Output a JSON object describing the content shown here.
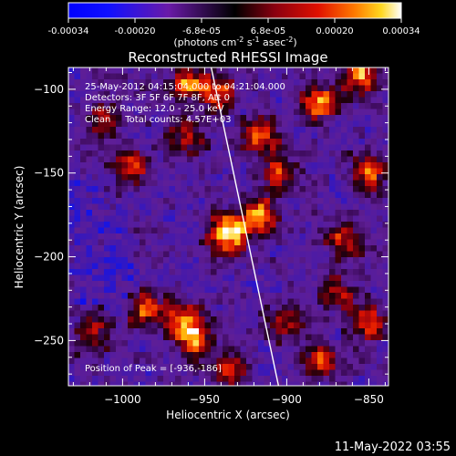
{
  "chart_data": {
    "type": "heatmap",
    "title": "Reconstructed RHESSI Image",
    "colorbar": {
      "ticks": [
        "-0.00034",
        "-0.00020",
        "-6.8e-05",
        "6.8e-05",
        "0.00020",
        "0.00034"
      ],
      "label_main": "(photons cm",
      "label_exp1": "-2",
      "label_mid1": " s",
      "label_exp2": "-1",
      "label_mid2": " asec",
      "label_exp3": "-2",
      "label_end": ")",
      "range": [
        -0.00034,
        0.00034
      ]
    },
    "xlabel": "Heliocentric X (arcsec)",
    "ylabel": "Heliocentric Y (arcsec)",
    "xlim": [
      -1033,
      -838
    ],
    "ylim": [
      -277,
      -87
    ],
    "xticks": [
      {
        "value": -1000,
        "label": "−1000"
      },
      {
        "value": -950,
        "label": "−950"
      },
      {
        "value": -900,
        "label": "−900"
      },
      {
        "value": -850,
        "label": "−850"
      }
    ],
    "yticks": [
      {
        "value": -100,
        "label": "−100"
      },
      {
        "value": -150,
        "label": "−150"
      },
      {
        "value": -200,
        "label": "−200"
      },
      {
        "value": -250,
        "label": "−250"
      }
    ],
    "annotations": [
      "25-May-2012 04:15:04.000 to 04:21:04.000",
      "Detectors: 3F 5F 6F 7F 8F, Att 0",
      "Energy Range: 12.0 - 25.0 keV",
      "Clean     Total counts: 4.57E+03"
    ],
    "peak_label": "Position of Peak = [-936,-186]",
    "peak": [
      -936,
      -186
    ],
    "limb_line": [
      [
        -946,
        -87
      ],
      [
        -905,
        -277
      ]
    ],
    "sources": [
      {
        "x": -936,
        "y": -186,
        "amplitude": 1.0
      },
      {
        "x": -917,
        "y": -176,
        "amplitude": 0.7
      },
      {
        "x": -960,
        "y": -96,
        "amplitude": 0.6
      },
      {
        "x": -942,
        "y": -102,
        "amplitude": 0.55
      },
      {
        "x": -960,
        "y": -128,
        "amplitude": 0.45
      },
      {
        "x": -915,
        "y": -128,
        "amplitude": 0.55
      },
      {
        "x": -905,
        "y": -150,
        "amplitude": 0.5
      },
      {
        "x": -880,
        "y": -108,
        "amplitude": 0.65
      },
      {
        "x": -855,
        "y": -92,
        "amplitude": 0.7
      },
      {
        "x": -850,
        "y": -150,
        "amplitude": 0.6
      },
      {
        "x": -865,
        "y": -190,
        "amplitude": 0.5
      },
      {
        "x": -995,
        "y": -148,
        "amplitude": 0.5
      },
      {
        "x": -1010,
        "y": -120,
        "amplitude": 0.45
      },
      {
        "x": -985,
        "y": -232,
        "amplitude": 0.55
      },
      {
        "x": -962,
        "y": -238,
        "amplitude": 0.65
      },
      {
        "x": -955,
        "y": -250,
        "amplitude": 0.55
      },
      {
        "x": -935,
        "y": -268,
        "amplitude": 0.5
      },
      {
        "x": -900,
        "y": -240,
        "amplitude": 0.45
      },
      {
        "x": -880,
        "y": -262,
        "amplitude": 0.5
      },
      {
        "x": -850,
        "y": -240,
        "amplitude": 0.5
      },
      {
        "x": -1018,
        "y": -246,
        "amplitude": 0.45
      },
      {
        "x": -868,
        "y": -222,
        "amplitude": 0.4
      }
    ]
  },
  "footer": {
    "timestamp": "11-May-2022 03:55"
  }
}
